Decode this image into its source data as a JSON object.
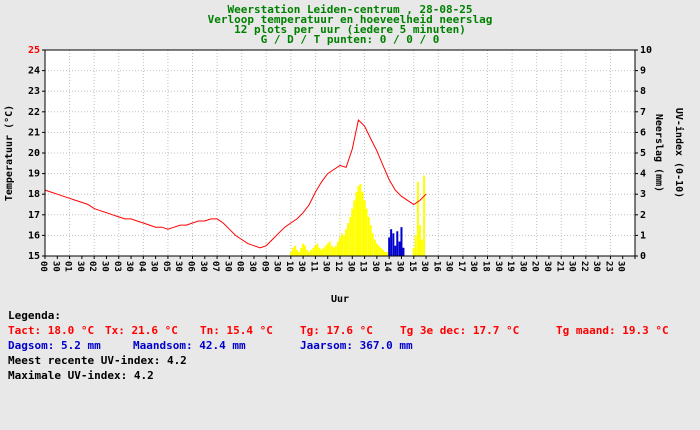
{
  "header": {
    "line1": "Weerstation Leiden-centrum , 28-08-25",
    "line2": "Verloop temperatuur en hoeveelheid neerslag",
    "line3": "12 plots per uur (iedere 5 minuten)",
    "line4": "G / D / T punten: 0 / 0 / 0"
  },
  "colors": {
    "page_background": "#e8e8e8",
    "plot_background": "#ffffff",
    "grid": "#c0c0c0",
    "axis": "#000000",
    "title_green": "#008000",
    "temperature": "#ff0000",
    "precipitation": "#ffff00",
    "blue_bar": "#0000cd",
    "legend_blue": "#0000cd",
    "left_axis_top_label": "#ff0000"
  },
  "chart_data": {
    "type": "line+bar",
    "title": "Verloop temperatuur en hoeveelheid neerslag",
    "x_axis": {
      "label": "Uur",
      "min_hour": 0,
      "max_hour": 24,
      "tick_labels": [
        "00",
        "30",
        "01",
        "30",
        "02",
        "30",
        "03",
        "30",
        "04",
        "30",
        "05",
        "30",
        "06",
        "30",
        "07",
        "30",
        "08",
        "30",
        "09",
        "30",
        "10",
        "30",
        "11",
        "30",
        "12",
        "30",
        "13",
        "30",
        "14",
        "30",
        "15",
        "30",
        "16",
        "30",
        "17",
        "30",
        "18",
        "30",
        "19",
        "30",
        "20",
        "30",
        "21",
        "30",
        "22",
        "30",
        "23",
        "30"
      ]
    },
    "left_axis": {
      "label": "Temperatuur (°C)",
      "min": 15,
      "max": 25,
      "ticks": [
        15,
        16,
        17,
        18,
        19,
        20,
        21,
        22,
        23,
        24,
        25
      ]
    },
    "right_axis": {
      "label_1": "Neerslag (mm)",
      "label_2": "UV-index (0-10)",
      "min": 0,
      "max": 10,
      "ticks": [
        0,
        1,
        2,
        3,
        4,
        5,
        6,
        7,
        8,
        9,
        10
      ]
    },
    "series": [
      {
        "name": "temperatuur",
        "type": "line",
        "color_key": "temperature",
        "start_hour": 0,
        "interval_hours": 0.25,
        "values": [
          18.2,
          18.1,
          18.0,
          17.9,
          17.8,
          17.7,
          17.6,
          17.5,
          17.3,
          17.2,
          17.1,
          17.0,
          16.9,
          16.8,
          16.8,
          16.7,
          16.6,
          16.5,
          16.4,
          16.4,
          16.3,
          16.4,
          16.5,
          16.5,
          16.6,
          16.7,
          16.7,
          16.8,
          16.8,
          16.6,
          16.3,
          16.0,
          15.8,
          15.6,
          15.5,
          15.4,
          15.5,
          15.8,
          16.1,
          16.4,
          16.6,
          16.8,
          17.1,
          17.5,
          18.1,
          18.6,
          19.0,
          19.2,
          19.4,
          19.3,
          20.2,
          21.6,
          21.3,
          20.7,
          20.1,
          19.4,
          18.7,
          18.2,
          17.9,
          17.7,
          17.5,
          17.7,
          18.0
        ]
      },
      {
        "name": "neerslag",
        "type": "bar",
        "color_key": "precipitation",
        "points": [
          [
            10.0,
            0.2
          ],
          [
            10.08,
            0.4
          ],
          [
            10.17,
            0.5
          ],
          [
            10.25,
            0.3
          ],
          [
            10.33,
            0.2
          ],
          [
            10.42,
            0.4
          ],
          [
            10.5,
            0.6
          ],
          [
            10.58,
            0.5
          ],
          [
            10.67,
            0.3
          ],
          [
            10.75,
            0.2
          ],
          [
            10.83,
            0.3
          ],
          [
            10.92,
            0.4
          ],
          [
            11.0,
            0.5
          ],
          [
            11.08,
            0.6
          ],
          [
            11.17,
            0.4
          ],
          [
            11.25,
            0.3
          ],
          [
            11.33,
            0.4
          ],
          [
            11.42,
            0.5
          ],
          [
            11.5,
            0.6
          ],
          [
            11.58,
            0.7
          ],
          [
            11.67,
            0.5
          ],
          [
            11.75,
            0.4
          ],
          [
            11.83,
            0.5
          ],
          [
            11.92,
            0.7
          ],
          [
            12.0,
            0.9
          ],
          [
            12.08,
            1.1
          ],
          [
            12.17,
            1.0
          ],
          [
            12.25,
            1.3
          ],
          [
            12.33,
            1.6
          ],
          [
            12.42,
            1.9
          ],
          [
            12.5,
            2.3
          ],
          [
            12.58,
            2.7
          ],
          [
            12.67,
            3.1
          ],
          [
            12.75,
            3.4
          ],
          [
            12.83,
            3.5
          ],
          [
            12.92,
            3.1
          ],
          [
            13.0,
            2.7
          ],
          [
            13.08,
            2.3
          ],
          [
            13.17,
            1.9
          ],
          [
            13.25,
            1.5
          ],
          [
            13.33,
            1.1
          ],
          [
            13.42,
            0.8
          ],
          [
            13.5,
            0.6
          ],
          [
            13.58,
            0.5
          ],
          [
            13.67,
            0.4
          ],
          [
            13.75,
            0.3
          ],
          [
            13.83,
            0.2
          ],
          [
            13.92,
            0.2
          ],
          [
            15.0,
            0.4
          ],
          [
            15.08,
            1.0
          ],
          [
            15.17,
            3.6
          ],
          [
            15.25,
            1.5
          ],
          [
            15.33,
            0.8
          ],
          [
            15.42,
            3.9
          ]
        ]
      },
      {
        "name": "neerslag-blauw",
        "type": "bar",
        "color_key": "blue_bar",
        "points": [
          [
            14.0,
            0.9
          ],
          [
            14.08,
            1.3
          ],
          [
            14.17,
            1.1
          ],
          [
            14.25,
            0.5
          ],
          [
            14.33,
            1.2
          ],
          [
            14.42,
            0.7
          ],
          [
            14.5,
            1.4
          ],
          [
            14.58,
            0.4
          ]
        ]
      }
    ]
  },
  "legend": {
    "heading": "Legenda:",
    "red_items": [
      "Tact: 18.0 °C",
      "Tx: 21.6 °C",
      "Tn: 15.4 °C",
      "Tg: 17.6 °C",
      "Tg 3e dec: 17.7 °C",
      "Tg maand: 19.3 °C"
    ],
    "blue_items": [
      "Dagsom: 5.2 mm",
      "Maandsom: 42.4 mm",
      "Jaarsom: 367.0 mm"
    ],
    "black_items": [
      "Meest recente UV-index: 4.2",
      "Maximale UV-index: 4.2"
    ]
  }
}
